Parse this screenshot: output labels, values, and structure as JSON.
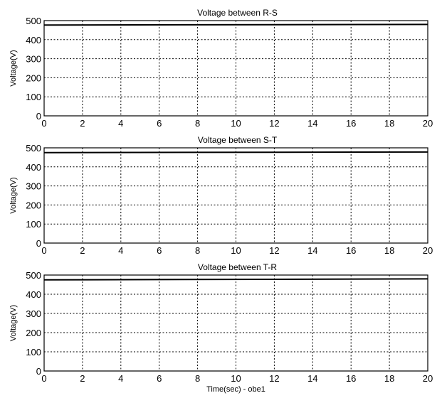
{
  "chart_data": [
    {
      "type": "line",
      "title": "Voltage between R-S",
      "xlabel": "",
      "ylabel": "Voltage(V)",
      "xlim": [
        0,
        20
      ],
      "ylim": [
        0,
        500
      ],
      "xticks": [
        "0",
        "2",
        "4",
        "6",
        "8",
        "10",
        "12",
        "14",
        "16",
        "18",
        "20"
      ],
      "yticks": [
        "0",
        "100",
        "200",
        "300",
        "400",
        "500"
      ],
      "grid": true,
      "series": [
        {
          "x": [
            0,
            20
          ],
          "y": [
            477,
            480
          ]
        }
      ]
    },
    {
      "type": "line",
      "title": "Voltage between S-T",
      "xlabel": "",
      "ylabel": "Voltage(V)",
      "xlim": [
        0,
        20
      ],
      "ylim": [
        0,
        500
      ],
      "xticks": [
        "0",
        "2",
        "4",
        "6",
        "8",
        "10",
        "12",
        "14",
        "16",
        "18",
        "20"
      ],
      "yticks": [
        "0",
        "100",
        "200",
        "300",
        "400",
        "500"
      ],
      "grid": true,
      "series": [
        {
          "x": [
            0,
            20
          ],
          "y": [
            475,
            478
          ]
        }
      ]
    },
    {
      "type": "line",
      "title": "Voltage between T-R",
      "xlabel": "Time(sec) - obe1",
      "ylabel": "Voltage(V)",
      "xlim": [
        0,
        20
      ],
      "ylim": [
        0,
        500
      ],
      "xticks": [
        "0",
        "2",
        "4",
        "6",
        "8",
        "10",
        "12",
        "14",
        "16",
        "18",
        "20"
      ],
      "yticks": [
        "0",
        "100",
        "200",
        "300",
        "400",
        "500"
      ],
      "grid": true,
      "series": [
        {
          "x": [
            0,
            20
          ],
          "y": [
            475,
            480
          ]
        }
      ]
    }
  ]
}
